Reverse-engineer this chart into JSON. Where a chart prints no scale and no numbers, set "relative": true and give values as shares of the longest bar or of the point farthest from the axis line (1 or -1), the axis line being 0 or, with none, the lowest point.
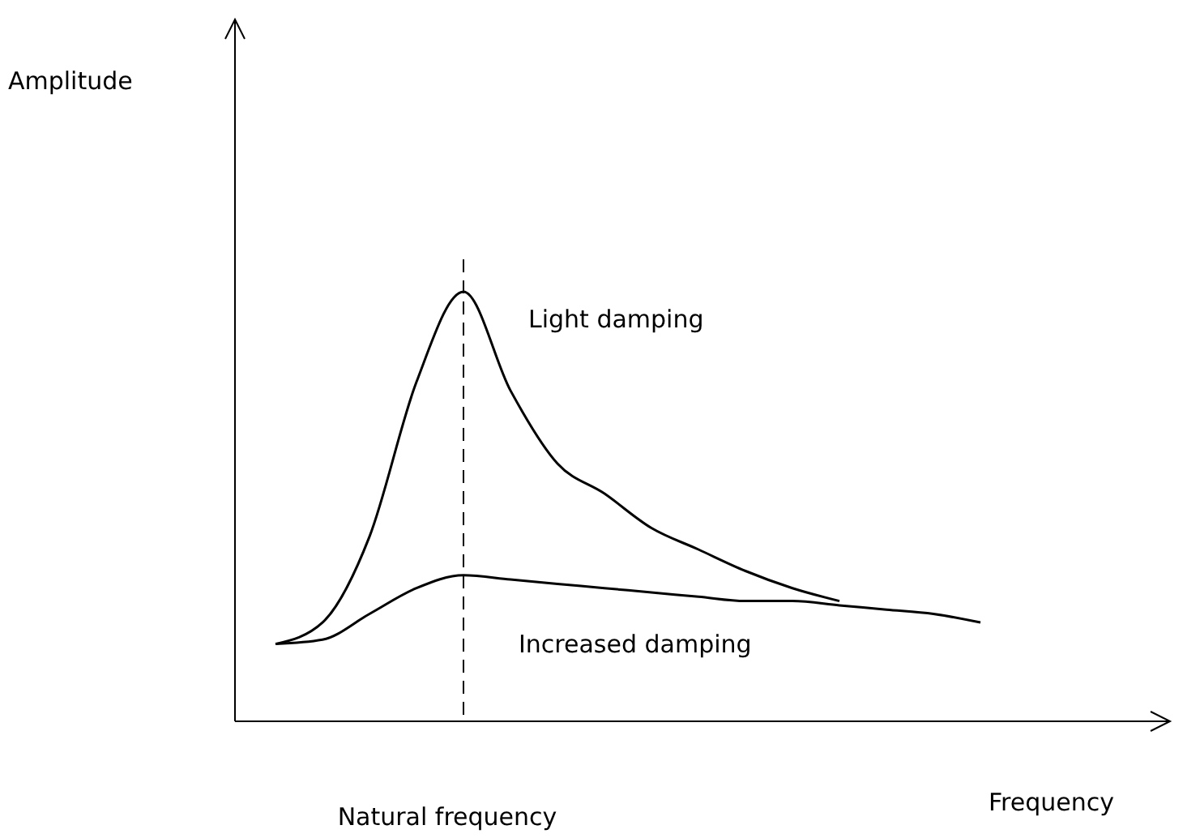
{
  "chart_data": {
    "type": "line",
    "relative": true,
    "xlabel": "Frequency",
    "categories": [
      null,
      null,
      null,
      null,
      null,
      null,
      null,
      null,
      null,
      null,
      null,
      null,
      null,
      null,
      null,
      null
    ],
    "series": [
      {
        "name": "Light damping",
        "color": "#000000",
        "values": [
          0.18,
          0.23,
          0.43,
          0.79,
          1,
          0.77,
          0.6,
          0.53,
          0.45,
          0.4,
          0.35,
          0.31,
          0.28,
          null,
          null,
          null
        ]
      },
      {
        "name": "Increased damping",
        "color": "#000000",
        "values": [
          0.18,
          0.19,
          0.25,
          0.31,
          0.34,
          0.33,
          0.32,
          0.31,
          0.3,
          0.29,
          0.28,
          0.28,
          0.27,
          0.26,
          0.25,
          0.23
        ]
      }
    ],
    "annotations": [
      "Amplitude",
      "Natural frequency"
    ],
    "grid": false,
    "legend": false,
    "marker": "none",
    "line_style": "solid"
  }
}
